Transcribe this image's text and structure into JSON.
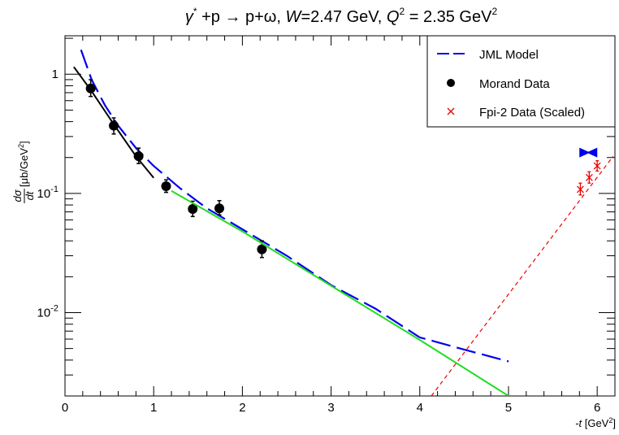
{
  "chart_data": {
    "type": "scatter",
    "title": "γ* +p → p+ω, W=2.47 GeV, Q² = 2.35 GeV²",
    "title_parts": {
      "gamma": "γ",
      "star": "*",
      "reaction": " +p → p+ω, ",
      "W_label": "W",
      "W_value": "=2.47 GeV, ",
      "Q_label": "Q",
      "Q_exp": "2",
      "Q_value": " = 2.35 GeV",
      "unit_exp": "2"
    },
    "xlabel": "-t [GeV²]",
    "xlabel_parts": {
      "t": "-t",
      "unit": " [GeV",
      "exp": "2",
      "close": "]"
    },
    "ylabel": "dσ/dt [μb/GeV²]",
    "ylabel_parts": {
      "num": "dσ",
      "den": "dt",
      "unit": " [μb/GeV",
      "exp": "2",
      "close": "]"
    },
    "xlim": [
      0,
      6.2
    ],
    "ylim": [
      0.002,
      2.1
    ],
    "yscale": "log",
    "x_ticks": [
      "0",
      "1",
      "2",
      "3",
      "4",
      "5",
      "6"
    ],
    "y_ticks": [
      {
        "value": 1,
        "base": "1",
        "exp": ""
      },
      {
        "value": 0.1,
        "base": "10",
        "exp": "-1"
      },
      {
        "value": 0.01,
        "base": "10",
        "exp": "-2"
      }
    ],
    "legend_position": "top-right",
    "legend": [
      {
        "label": "JML Model",
        "style": "blue-dashed-line"
      },
      {
        "label": "Morand Data",
        "style": "black-dot"
      },
      {
        "label": "Fpi-2 Data (Scaled)",
        "style": "red-cross"
      }
    ],
    "series": [
      {
        "name": "JML Model",
        "kind": "line",
        "color": "#0000ee",
        "dash": "long-dash",
        "x": [
          0.18,
          0.3,
          0.45,
          0.6,
          0.8,
          1.0,
          1.3,
          1.6,
          2.0,
          2.5,
          3.0,
          3.5,
          4.0,
          4.5,
          5.0
        ],
        "y": [
          1.6,
          0.9,
          0.55,
          0.37,
          0.24,
          0.17,
          0.11,
          0.075,
          0.05,
          0.03,
          0.017,
          0.0108,
          0.0062,
          0.0049,
          0.0039
        ]
      },
      {
        "name": "Morand Data",
        "kind": "points",
        "color": "#000000",
        "x": [
          0.29,
          0.55,
          0.83,
          1.14,
          1.44,
          1.74,
          2.22
        ],
        "y": [
          0.76,
          0.37,
          0.205,
          0.115,
          0.074,
          0.075,
          0.034
        ],
        "err_low": [
          0.65,
          0.315,
          0.178,
          0.102,
          0.064,
          0.066,
          0.029
        ],
        "err_high": [
          0.9,
          0.43,
          0.24,
          0.13,
          0.086,
          0.087,
          0.04
        ]
      },
      {
        "name": "Fpi-2 Data (Scaled)",
        "kind": "crosses",
        "color": "#ee0000",
        "x": [
          5.81,
          5.91,
          6.0
        ],
        "y": [
          0.108,
          0.136,
          0.17
        ],
        "err_low": [
          0.097,
          0.122,
          0.154
        ],
        "err_high": [
          0.122,
          0.152,
          0.188
        ]
      },
      {
        "kind": "line",
        "color": "#ee0000",
        "dash": "short-dash",
        "x": [
          4.13,
          6.18
        ],
        "y": [
          0.002,
          0.205
        ]
      },
      {
        "kind": "line",
        "color": "#000000",
        "dash": "solid",
        "x": [
          0.1,
          0.3,
          0.55,
          0.8,
          1.0
        ],
        "y": [
          1.15,
          0.72,
          0.38,
          0.205,
          0.135
        ]
      },
      {
        "kind": "line",
        "color": "#22dd22",
        "dash": "solid",
        "x": [
          1.2,
          2.0,
          3.0,
          4.0,
          5.0
        ],
        "y": [
          0.105,
          0.048,
          0.0168,
          0.0059,
          0.002
        ]
      },
      {
        "kind": "marker",
        "color": "#0000ee",
        "shape": "bowtie",
        "x": [
          5.9
        ],
        "y": [
          0.22
        ]
      }
    ]
  }
}
